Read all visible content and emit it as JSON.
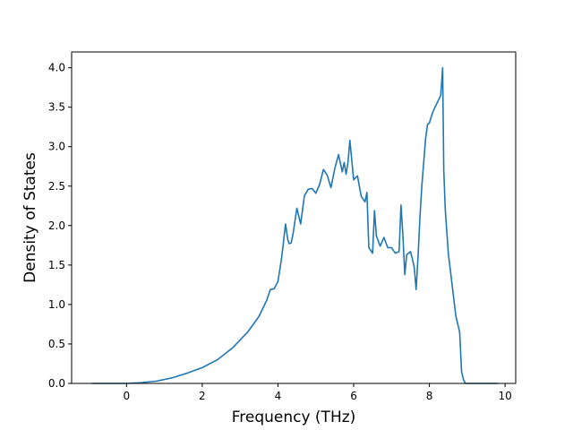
{
  "chart_data": {
    "type": "line",
    "xlabel": "Frequency (THz)",
    "ylabel": "Density of States",
    "xlim": [
      -1.45,
      10.28
    ],
    "ylim": [
      0,
      4.2
    ],
    "x_ticks": [
      0,
      2,
      4,
      6,
      8,
      10
    ],
    "y_ticks": [
      0.0,
      0.5,
      1.0,
      1.5,
      2.0,
      2.5,
      3.0,
      3.5,
      4.0
    ],
    "x_tick_labels": [
      "0",
      "2",
      "4",
      "6",
      "8",
      "10"
    ],
    "y_tick_labels": [
      "0.0",
      "0.5",
      "1.0",
      "1.5",
      "2.0",
      "2.5",
      "3.0",
      "3.5",
      "4.0"
    ],
    "grid": false,
    "line_color": "#1f77b4",
    "series": [
      {
        "x": [
          -0.9,
          -0.5,
          0.0,
          0.4,
          0.8,
          1.2,
          1.6,
          2.0,
          2.4,
          2.8,
          3.2,
          3.5,
          3.7,
          3.8,
          3.9,
          4.0,
          4.1,
          4.2,
          4.26,
          4.3,
          4.35,
          4.4,
          4.5,
          4.6,
          4.7,
          4.8,
          4.9,
          5.0,
          5.1,
          5.2,
          5.3,
          5.4,
          5.5,
          5.6,
          5.7,
          5.75,
          5.8,
          5.85,
          5.9,
          6.0,
          6.1,
          6.2,
          6.3,
          6.35,
          6.4,
          6.5,
          6.55,
          6.6,
          6.7,
          6.8,
          6.9,
          7.0,
          7.1,
          7.2,
          7.25,
          7.3,
          7.35,
          7.4,
          7.5,
          7.55,
          7.6,
          7.65,
          7.7,
          7.75,
          7.8,
          7.9,
          7.95,
          8.0,
          8.05,
          8.1,
          8.2,
          8.3,
          8.35,
          8.38,
          8.42,
          8.5,
          8.6,
          8.7,
          8.8,
          8.85,
          8.9,
          8.95,
          9.0,
          9.3,
          9.8
        ],
        "y": [
          0.0,
          0.0,
          0.0,
          0.01,
          0.03,
          0.07,
          0.13,
          0.2,
          0.3,
          0.45,
          0.65,
          0.85,
          1.05,
          1.19,
          1.2,
          1.29,
          1.6,
          2.02,
          1.82,
          1.77,
          1.78,
          1.9,
          2.22,
          2.02,
          2.38,
          2.46,
          2.47,
          2.41,
          2.52,
          2.71,
          2.64,
          2.48,
          2.72,
          2.9,
          2.68,
          2.8,
          2.65,
          2.8,
          3.08,
          2.58,
          2.63,
          2.37,
          2.3,
          2.42,
          1.72,
          1.65,
          2.19,
          1.87,
          1.74,
          1.85,
          1.72,
          1.72,
          1.65,
          1.67,
          2.26,
          1.88,
          1.38,
          1.63,
          1.67,
          1.58,
          1.47,
          1.19,
          1.6,
          2.1,
          2.5,
          3.1,
          3.28,
          3.3,
          3.38,
          3.45,
          3.55,
          3.65,
          4.0,
          2.7,
          2.2,
          1.65,
          1.25,
          0.85,
          0.65,
          0.15,
          0.05,
          0.0,
          0.0,
          0.0,
          0.0
        ]
      }
    ]
  }
}
